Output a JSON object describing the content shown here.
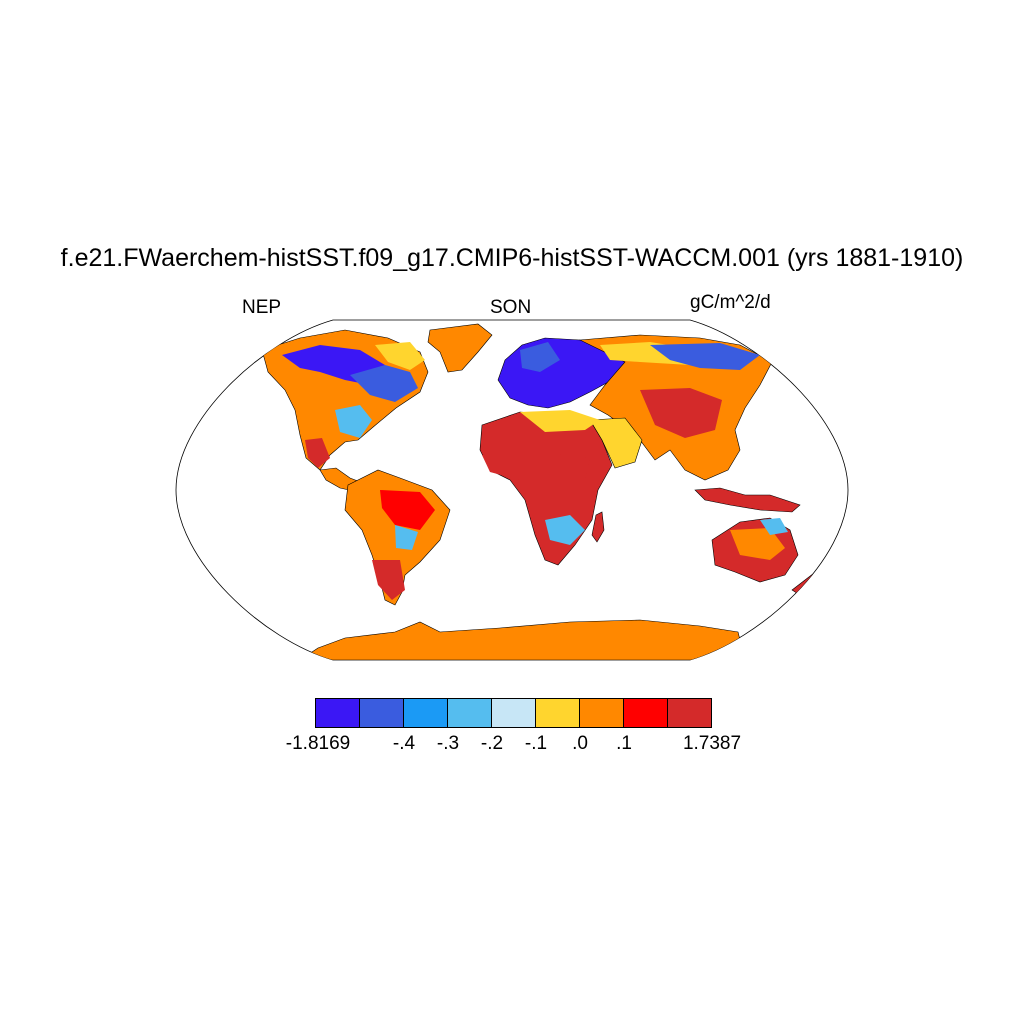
{
  "title": "f.e21.FWaerchem-histSST.f09_g17.CMIP6-histSST-WACCM.001 (yrs 1881-1910)",
  "left_label": "NEP",
  "center_label": "SON",
  "right_label": "gC/m^2/d",
  "colorbar": {
    "colors": [
      "#3b17f5",
      "#3a5cdf",
      "#1b9af5",
      "#55bdef",
      "#c7e6f6",
      "#ffd52e",
      "#ff8800",
      "#ff0000",
      "#d42a2a"
    ],
    "labels": [
      "-1.8169",
      "-.4",
      "-.3",
      "-.2",
      "-.1",
      ".0",
      ".1",
      "1.7387"
    ]
  },
  "colors": {
    "ocean": "#ffffff",
    "coastline": "#000000",
    "strong_negative": "#3b17f5",
    "negative": "#3a5cdf",
    "weak_negative": "#55bdef",
    "near_zero_negative": "#c7e6f6",
    "near_zero_positive": "#ffd52e",
    "positive": "#ff8800",
    "strong_positive": "#ff0000",
    "max_positive": "#d42a2a"
  }
}
